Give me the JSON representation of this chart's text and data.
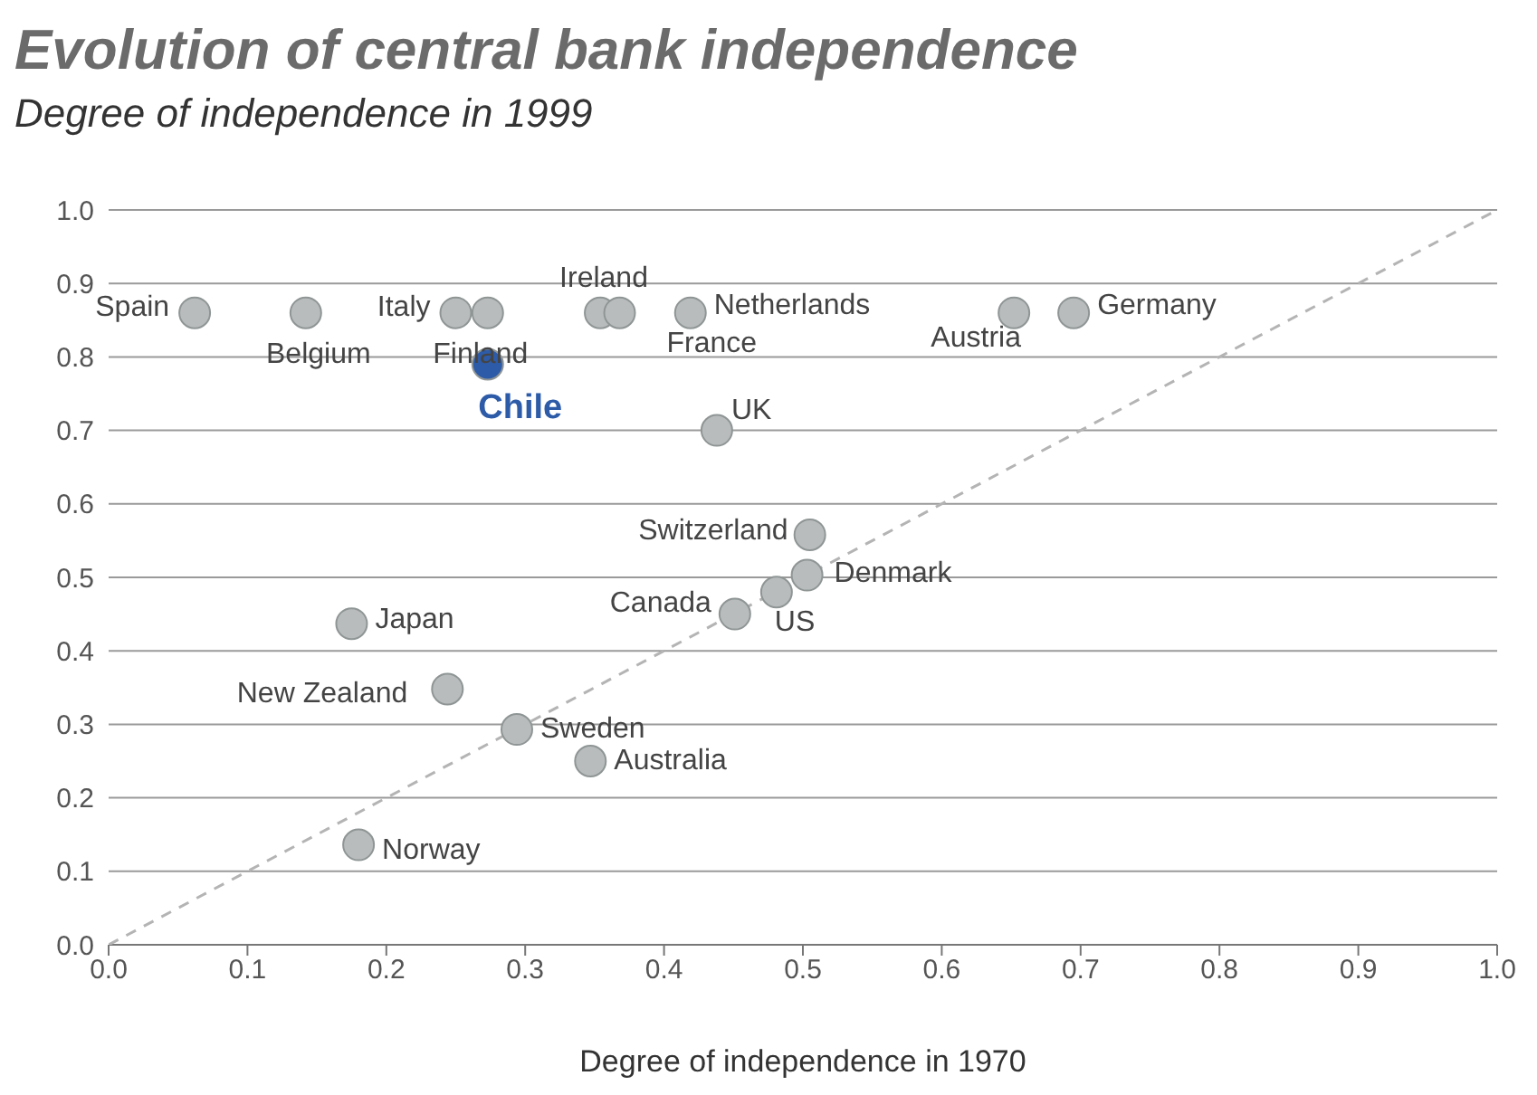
{
  "chart_data": {
    "type": "scatter",
    "title": "Evolution of central bank independence",
    "subtitle": "Degree of independence in 1999",
    "xlabel": "Degree of independence in 1970",
    "xlim": [
      0,
      1
    ],
    "ylim": [
      0,
      1
    ],
    "xticks": [
      {
        "value": 0,
        "label": "0.0"
      },
      0.1,
      0.2,
      0.3,
      0.4,
      0.5,
      0.6,
      0.7,
      0.8,
      0.9,
      {
        "value": 1,
        "label": "1.0"
      }
    ],
    "yticks": [
      {
        "value": 0,
        "label": "0.0"
      },
      0.1,
      0.2,
      0.3,
      0.4,
      0.5,
      0.6,
      0.7,
      0.8,
      0.9,
      {
        "value": 1,
        "label": "1.0"
      }
    ],
    "grid": "y",
    "marker": "circle",
    "series": [
      {
        "type": "line",
        "color": "#b4b4b4",
        "line_style": "dashed",
        "marker": "none",
        "x": [
          0,
          1
        ],
        "values": [
          0,
          1
        ]
      },
      {
        "color": "#b9bcbc",
        "x": [
          0.062,
          0.142,
          0.25,
          0.273,
          0.354,
          0.368,
          0.419,
          0.652,
          0.695,
          0.438,
          0.505,
          0.503,
          0.481,
          0.451,
          0.175,
          0.244,
          0.294,
          0.347,
          0.18
        ],
        "values": [
          0.86,
          0.86,
          0.86,
          0.86,
          0.86,
          0.86,
          0.86,
          0.86,
          0.86,
          0.7,
          0.558,
          0.503,
          0.48,
          0.45,
          0.437,
          0.348,
          0.293,
          0.25,
          0.136
        ]
      },
      {
        "name": "Chile",
        "color": "#2d5ba8",
        "x": [
          0.273
        ],
        "values": [
          0.79
        ]
      }
    ],
    "annotations": [
      {
        "text": "Spain",
        "x": 0.062,
        "y": 0.86
      },
      {
        "text": "Belgium",
        "x": 0.142,
        "y": 0.86
      },
      {
        "text": "Italy",
        "x": 0.25,
        "y": 0.86
      },
      {
        "text": "Finland",
        "x": 0.273,
        "y": 0.86
      },
      {
        "text": "Ireland",
        "x": 0.354,
        "y": 0.86
      },
      {
        "text": "France",
        "x": 0.368,
        "y": 0.86
      },
      {
        "text": "Netherlands",
        "x": 0.419,
        "y": 0.86
      },
      {
        "text": "Austria",
        "x": 0.652,
        "y": 0.86
      },
      {
        "text": "Germany",
        "x": 0.695,
        "y": 0.86
      },
      {
        "text": "UK",
        "x": 0.438,
        "y": 0.7
      },
      {
        "text": "Switzerland",
        "x": 0.505,
        "y": 0.558
      },
      {
        "text": "Denmark",
        "x": 0.503,
        "y": 0.503
      },
      {
        "text": "US",
        "x": 0.481,
        "y": 0.48
      },
      {
        "text": "Canada",
        "x": 0.451,
        "y": 0.45
      },
      {
        "text": "Japan",
        "x": 0.175,
        "y": 0.437
      },
      {
        "text": "New Zealand",
        "x": 0.244,
        "y": 0.348
      },
      {
        "text": "Sweden",
        "x": 0.294,
        "y": 0.293
      },
      {
        "text": "Australia",
        "x": 0.347,
        "y": 0.25
      },
      {
        "text": "Norway",
        "x": 0.18,
        "y": 0.136
      }
    ]
  }
}
